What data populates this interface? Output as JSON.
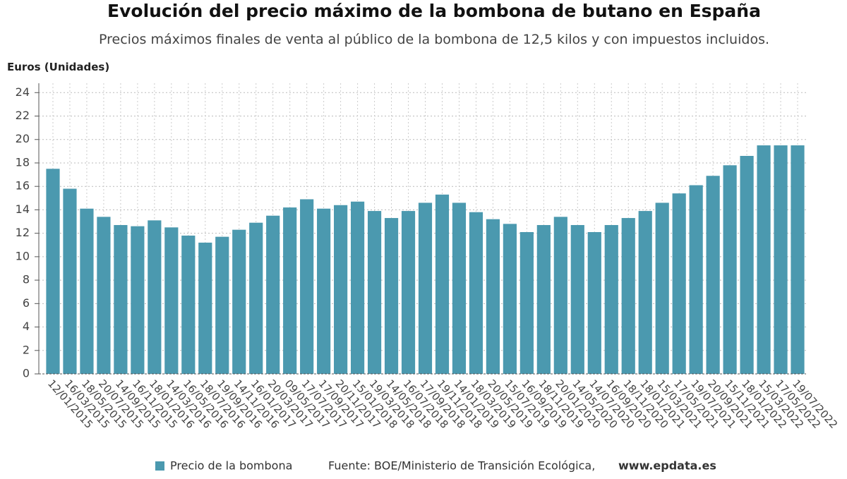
{
  "chart_data": {
    "type": "bar",
    "title": "Evolución del precio máximo de la bombona de butano en España",
    "subtitle": "Precios máximos finales de venta al público de la bombona de 12,5 kilos y con impuestos incluidos.",
    "y_label": "Euros (Unidades)",
    "source": "Fuente: BOE/Ministerio de Transición Ecológica,",
    "source_site": "www.epdata.es",
    "categories": [
      "12/01/2015",
      "16/03/2015",
      "18/05/2015",
      "20/07/2015",
      "14/09/2015",
      "16/11/2015",
      "18/01/2016",
      "14/03/2016",
      "16/05/2016",
      "18/07/2016",
      "19/09/2016",
      "14/11/2016",
      "16/01/2017",
      "20/03/2017",
      "09/05/2017",
      "17/07/2017",
      "17/09/2017",
      "20/11/2017",
      "15/01/2018",
      "19/03/2018",
      "14/05/2018",
      "16/07/2018",
      "17/09/2018",
      "19/11/2018",
      "14/01/2019",
      "18/03/2019",
      "20/05/2019",
      "15/07/2019",
      "16/09/2019",
      "18/11/2019",
      "20/01/2020",
      "14/05/2020",
      "14/07/2020",
      "16/09/2020",
      "18/11/2020",
      "18/01/2021",
      "15/03/2021",
      "17/05/2021",
      "19/07/2021",
      "20/09/2021",
      "15/11/2021",
      "18/01/2022",
      "15/03/2022",
      "17/05/2022",
      "19/07/2022"
    ],
    "series": [
      {
        "name": "Precio de la bombona",
        "color": "#4b99af",
        "values": [
          17.5,
          15.8,
          14.1,
          13.4,
          12.7,
          12.6,
          13.1,
          12.5,
          11.8,
          11.2,
          11.7,
          12.3,
          12.9,
          13.5,
          14.2,
          14.9,
          14.1,
          14.4,
          14.7,
          13.9,
          13.3,
          13.9,
          14.6,
          15.3,
          14.6,
          13.8,
          13.2,
          12.8,
          12.1,
          12.7,
          13.4,
          12.7,
          12.1,
          12.7,
          13.3,
          13.9,
          14.6,
          15.4,
          16.1,
          16.9,
          17.8,
          18.6,
          19.5,
          19.5,
          19.5
        ]
      }
    ],
    "ylim": [
      0,
      24.8
    ],
    "yticks": [
      0,
      2,
      4,
      6,
      8,
      10,
      12,
      14,
      16,
      18,
      20,
      22,
      24
    ],
    "grid": true
  }
}
